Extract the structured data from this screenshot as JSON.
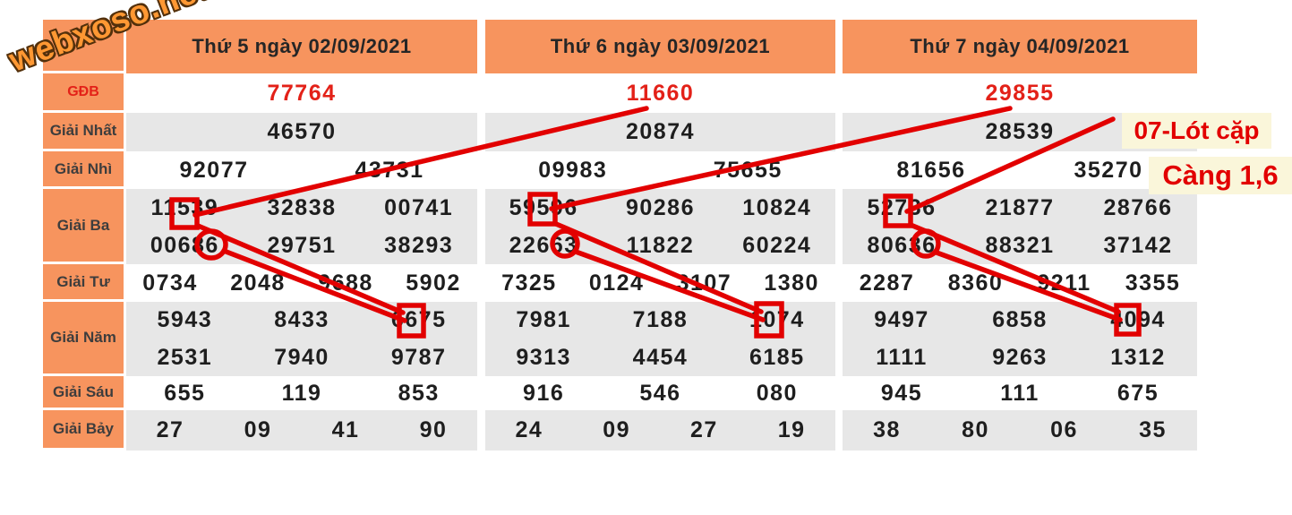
{
  "logo": {
    "text": "webxoso.net"
  },
  "colors": {
    "header_orange": "#f7945e",
    "shaded_row": "#e7e7e7",
    "result_red": "#e32118",
    "annotation_red": "#e20000",
    "note_background": "#faf6da"
  },
  "row_labels": [
    {
      "key": "gdb",
      "label": "GĐB"
    },
    {
      "key": "nhat",
      "label": "Giải Nhất"
    },
    {
      "key": "nhi",
      "label": "Giải Nhì"
    },
    {
      "key": "ba",
      "label": "Giải Ba"
    },
    {
      "key": "tu",
      "label": "Giải Tư"
    },
    {
      "key": "nam",
      "label": "Giải Năm"
    },
    {
      "key": "sau",
      "label": "Giải Sáu"
    },
    {
      "key": "bay",
      "label": "Giải Bảy"
    }
  ],
  "days": [
    {
      "header": "Thứ 5 ngày 02/09/2021",
      "rows": {
        "gdb": [
          "77764"
        ],
        "nhat": [
          "46570"
        ],
        "nhi": [
          "92077",
          "43731"
        ],
        "ba": [
          [
            "11539",
            "32838",
            "00741"
          ],
          [
            "00686",
            "29751",
            "38293"
          ]
        ],
        "tu": [
          "0734",
          "2048",
          "9688",
          "5902"
        ],
        "nam": [
          [
            "5943",
            "8433",
            "6675"
          ],
          [
            "2531",
            "7940",
            "9787"
          ]
        ],
        "sau": [
          "655",
          "119",
          "853"
        ],
        "bay": [
          "27",
          "09",
          "41",
          "90"
        ]
      }
    },
    {
      "header": "Thứ 6 ngày 03/09/2021",
      "rows": {
        "gdb": [
          "11660"
        ],
        "nhat": [
          "20874"
        ],
        "nhi": [
          "09983",
          "75655"
        ],
        "ba": [
          [
            "59596",
            "90286",
            "10824"
          ],
          [
            "22663",
            "11822",
            "60224"
          ]
        ],
        "tu": [
          "7325",
          "0124",
          "3107",
          "1380"
        ],
        "nam": [
          [
            "7981",
            "7188",
            "1074"
          ],
          [
            "9313",
            "4454",
            "6185"
          ]
        ],
        "sau": [
          "916",
          "546",
          "080"
        ],
        "bay": [
          "24",
          "09",
          "27",
          "19"
        ]
      }
    },
    {
      "header": "Thứ 7 ngày 04/09/2021",
      "rows": {
        "gdb": [
          "29855"
        ],
        "nhat": [
          "28539"
        ],
        "nhi": [
          "81656",
          "35270"
        ],
        "ba": [
          [
            "52736",
            "21877",
            "28766"
          ],
          [
            "80636",
            "88321",
            "37142"
          ]
        ],
        "tu": [
          "2287",
          "8360",
          "9211",
          "3355"
        ],
        "nam": [
          [
            "9497",
            "6858",
            "4094"
          ],
          [
            "1111",
            "9263",
            "1312"
          ]
        ],
        "sau": [
          "945",
          "111",
          "675"
        ],
        "bay": [
          "38",
          "80",
          "06",
          "35"
        ]
      }
    }
  ],
  "annotations": {
    "note_pair": "07-Lót cặp",
    "note_cang": "Càng 1,6"
  }
}
